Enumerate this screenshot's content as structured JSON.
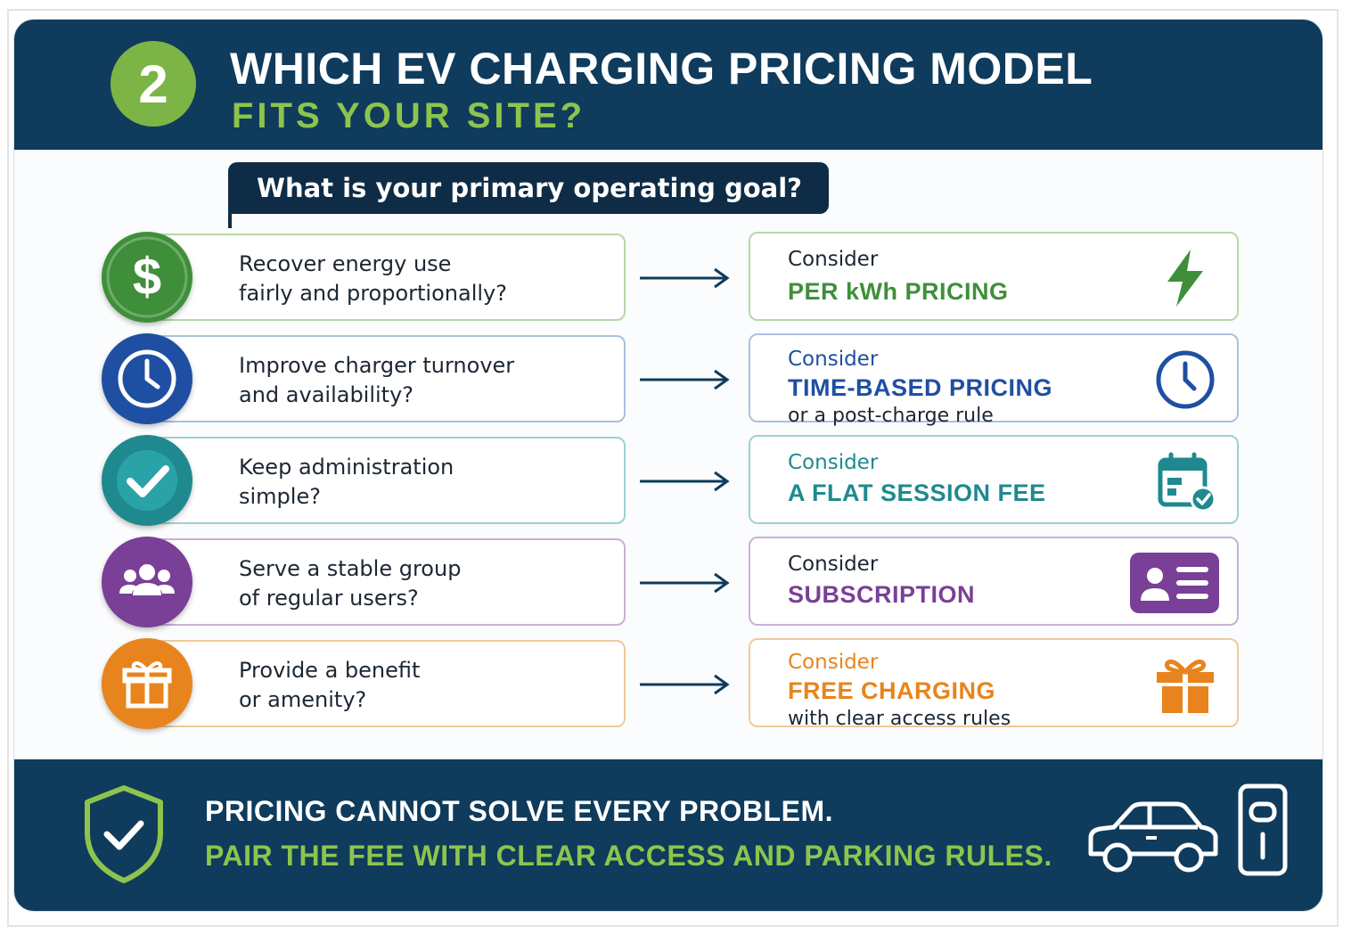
{
  "header": {
    "step_number": "2",
    "title_line1": "WHICH EV CHARGING PRICING MODEL",
    "title_line2": "FITS YOUR SITE?"
  },
  "question": "What is your primary operating goal?",
  "rows": [
    {
      "goal_line1": "Recover energy use",
      "goal_line2": "fairly and proportionally?",
      "icon": "dollar-icon",
      "consider": "Consider",
      "model": "PER kWh PRICING",
      "note": "",
      "rec_icon": "lightning-bolt-icon",
      "color": "#3f8f3a"
    },
    {
      "goal_line1": "Improve charger turnover",
      "goal_line2": "and availability?",
      "icon": "clock-icon",
      "consider": "Consider",
      "model": "TIME-BASED PRICING",
      "note": "or a post-charge rule",
      "rec_icon": "clock-icon",
      "color": "#1f4fa3"
    },
    {
      "goal_line1": "Keep administration",
      "goal_line2": "simple?",
      "icon": "checkmark-icon",
      "consider": "Consider",
      "model": "A FLAT SESSION FEE",
      "note": "",
      "rec_icon": "calendar-check-icon",
      "color": "#1e8a8f"
    },
    {
      "goal_line1": "Serve a stable group",
      "goal_line2": "of regular users?",
      "icon": "users-group-icon",
      "consider": "Consider",
      "model": "SUBSCRIPTION",
      "note": "",
      "rec_icon": "membership-card-icon",
      "color": "#7a3f97"
    },
    {
      "goal_line1": "Provide a benefit",
      "goal_line2": "or amenity?",
      "icon": "gift-icon",
      "consider": "Consider",
      "model": "FREE CHARGING",
      "note": "with clear access rules",
      "rec_icon": "gift-icon",
      "color": "#e8841d"
    }
  ],
  "footer": {
    "line1": "PRICING CANNOT SOLVE EVERY PROBLEM.",
    "line2": "PAIR THE FEE WITH CLEAR ACCESS AND PARKING RULES.",
    "icons": [
      "shield-check-icon",
      "car-icon",
      "charger-icon"
    ]
  },
  "colors": {
    "navy": "#0f3b5c",
    "accent_green": "#8dc44e",
    "badge_green": "#7db446"
  }
}
